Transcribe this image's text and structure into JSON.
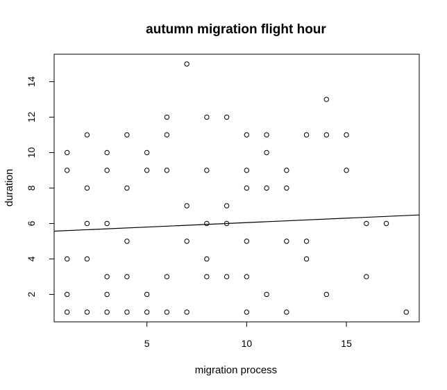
{
  "chart_data": {
    "type": "scatter",
    "title": "autumn migration flight hour",
    "xlabel": "migration process",
    "ylabel": "duration",
    "xlim": [
      0.35,
      18.65
    ],
    "ylim": [
      0.45,
      15.55
    ],
    "x_ticks": [
      5,
      10,
      15
    ],
    "y_ticks": [
      2,
      4,
      6,
      8,
      10,
      12,
      14
    ],
    "grid": false,
    "legend": "none",
    "points": [
      [
        1,
        1
      ],
      [
        1,
        2
      ],
      [
        1,
        4
      ],
      [
        1,
        9
      ],
      [
        1,
        10
      ],
      [
        2,
        1
      ],
      [
        2,
        4
      ],
      [
        2,
        6
      ],
      [
        2,
        8
      ],
      [
        2,
        11
      ],
      [
        3,
        1
      ],
      [
        3,
        2
      ],
      [
        3,
        3
      ],
      [
        3,
        6
      ],
      [
        3,
        9
      ],
      [
        3,
        10
      ],
      [
        4,
        1
      ],
      [
        4,
        3
      ],
      [
        4,
        5
      ],
      [
        4,
        8
      ],
      [
        4,
        11
      ],
      [
        5,
        1
      ],
      [
        5,
        2
      ],
      [
        5,
        9
      ],
      [
        5,
        10
      ],
      [
        6,
        1
      ],
      [
        6,
        3
      ],
      [
        6,
        9
      ],
      [
        6,
        11
      ],
      [
        6,
        12
      ],
      [
        7,
        1
      ],
      [
        7,
        5
      ],
      [
        7,
        7
      ],
      [
        7,
        15
      ],
      [
        8,
        3
      ],
      [
        8,
        4
      ],
      [
        8,
        6
      ],
      [
        8,
        9
      ],
      [
        8,
        12
      ],
      [
        9,
        3
      ],
      [
        9,
        6
      ],
      [
        9,
        7
      ],
      [
        9,
        12
      ],
      [
        10,
        1
      ],
      [
        10,
        3
      ],
      [
        10,
        5
      ],
      [
        10,
        8
      ],
      [
        10,
        9
      ],
      [
        10,
        11
      ],
      [
        11,
        2
      ],
      [
        11,
        8
      ],
      [
        11,
        10
      ],
      [
        11,
        11
      ],
      [
        12,
        1
      ],
      [
        12,
        5
      ],
      [
        12,
        8
      ],
      [
        12,
        9
      ],
      [
        13,
        4
      ],
      [
        13,
        5
      ],
      [
        13,
        11
      ],
      [
        14,
        2
      ],
      [
        14,
        11
      ],
      [
        14,
        13
      ],
      [
        15,
        9
      ],
      [
        15,
        11
      ],
      [
        16,
        3
      ],
      [
        16,
        6
      ],
      [
        17,
        6
      ],
      [
        18,
        1
      ]
    ],
    "regression_line": {
      "intercept": 5.55,
      "slope": 0.05
    }
  }
}
